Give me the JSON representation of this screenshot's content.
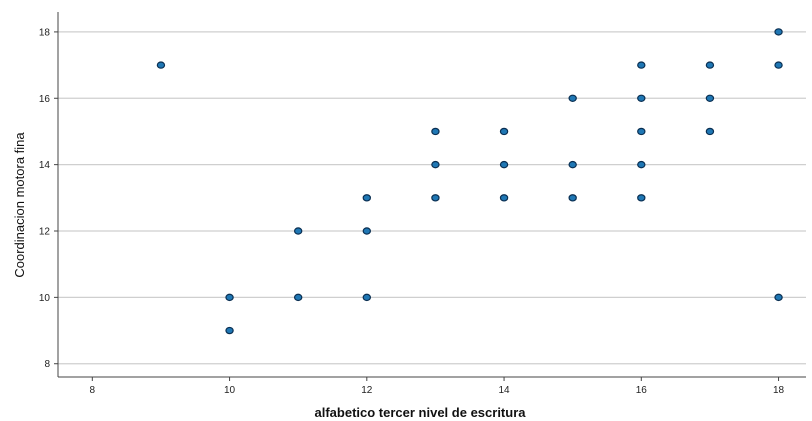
{
  "chart_data": {
    "type": "scatter",
    "title": "",
    "xlabel": "alfabetico tercer nivel de escritura",
    "ylabel": "Coordinacion motora fina",
    "xlim": [
      7.5,
      18.4
    ],
    "ylim": [
      7.6,
      18.6
    ],
    "xticks": [
      8,
      10,
      12,
      14,
      16,
      18
    ],
    "yticks": [
      8,
      10,
      12,
      14,
      16,
      18
    ],
    "grid": "horizontal",
    "point_color": "#1f77b4",
    "point_edge_color": "#0a2f52",
    "points": [
      {
        "x": 9,
        "y": 17
      },
      {
        "x": 10,
        "y": 10
      },
      {
        "x": 10,
        "y": 9
      },
      {
        "x": 11,
        "y": 12
      },
      {
        "x": 11,
        "y": 10
      },
      {
        "x": 12,
        "y": 13
      },
      {
        "x": 12,
        "y": 12
      },
      {
        "x": 12,
        "y": 10
      },
      {
        "x": 13,
        "y": 15
      },
      {
        "x": 13,
        "y": 14
      },
      {
        "x": 13,
        "y": 13
      },
      {
        "x": 14,
        "y": 15
      },
      {
        "x": 14,
        "y": 14
      },
      {
        "x": 14,
        "y": 13
      },
      {
        "x": 15,
        "y": 16
      },
      {
        "x": 15,
        "y": 14
      },
      {
        "x": 15,
        "y": 13
      },
      {
        "x": 16,
        "y": 17
      },
      {
        "x": 16,
        "y": 16
      },
      {
        "x": 16,
        "y": 15
      },
      {
        "x": 16,
        "y": 14
      },
      {
        "x": 16,
        "y": 13
      },
      {
        "x": 17,
        "y": 17
      },
      {
        "x": 17,
        "y": 16
      },
      {
        "x": 17,
        "y": 15
      },
      {
        "x": 18,
        "y": 18
      },
      {
        "x": 18,
        "y": 17
      },
      {
        "x": 18,
        "y": 10
      }
    ]
  }
}
